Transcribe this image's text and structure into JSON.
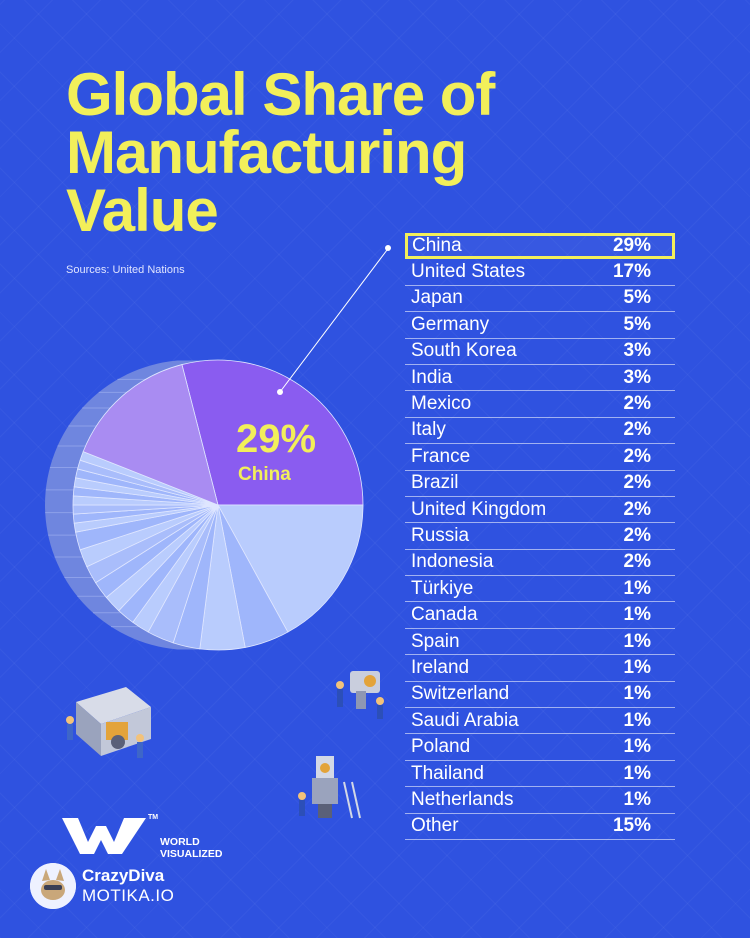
{
  "chart_data": {
    "type": "pie",
    "title": "Global Share of Manufacturing Value",
    "source": "Sources: United Nations",
    "highlight": {
      "label": "China",
      "value_label": "29%"
    },
    "categories": [
      "China",
      "United States",
      "Japan",
      "Germany",
      "South Korea",
      "India",
      "Mexico",
      "Italy",
      "France",
      "Brazil",
      "United Kingdom",
      "Russia",
      "Indonesia",
      "Türkiye",
      "Canada",
      "Spain",
      "Ireland",
      "Switzerland",
      "Saudi Arabia",
      "Poland",
      "Thailand",
      "Netherlands",
      "Other"
    ],
    "values": [
      29,
      17,
      5,
      5,
      3,
      3,
      2,
      2,
      2,
      2,
      2,
      2,
      2,
      1,
      1,
      1,
      1,
      1,
      1,
      1,
      1,
      1,
      15
    ],
    "value_labels": [
      "29%",
      "17%",
      "5%",
      "5%",
      "3%",
      "3%",
      "2%",
      "2%",
      "2%",
      "2%",
      "2%",
      "2%",
      "2%",
      "1%",
      "1%",
      "1%",
      "1%",
      "1%",
      "1%",
      "1%",
      "1%",
      "1%",
      "15%"
    ]
  },
  "colors": {
    "background": "#2f52e0",
    "accent_yellow": "#f2ef5a",
    "china": "#8a5cf0",
    "other": "#a98cf2",
    "us": "#a9bdfb",
    "slice_light": "#b9ccfd",
    "slice_mid": "#9fb6fb",
    "side": "#6f86df"
  },
  "branding": {
    "logo_line1": "WORLD",
    "logo_line2": "VISUALIZED",
    "logo_tm": "TM",
    "creator_name": "CrazyDiva",
    "creator_site": "MOTIKA.IO"
  },
  "icons": [
    "factory-worker-machine-icon",
    "robot-arm-worker-icon",
    "drill-tower-worker-icon",
    "world-visualized-logo-icon",
    "creator-avatar-icon"
  ]
}
